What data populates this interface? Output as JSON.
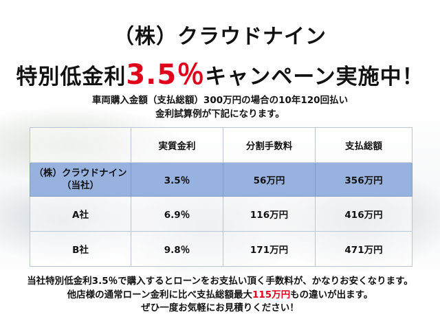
{
  "header": {
    "company": "（株）クラウドナイン",
    "headline_before": "特別低金利",
    "headline_rate": "3.5％",
    "headline_after": "キャンペーン実施中！"
  },
  "description": {
    "line1": "車両購入金額（支払総額）300万円の場合の10年120回払い",
    "line2": "金利試算例が下記になります。"
  },
  "table": {
    "columns": [
      "",
      "実質金利",
      "分割手数料",
      "支払総額"
    ],
    "rows": [
      {
        "name_line1": "（株）クラウドナイン",
        "name_line2": "（当社）",
        "rate": "3.5％",
        "fee": "56万円",
        "total": "356万円"
      },
      {
        "name_line1": "A社",
        "name_line2": "",
        "rate": "6.9％",
        "fee": "116万円",
        "total": "416万円"
      },
      {
        "name_line1": "B社",
        "name_line2": "",
        "rate": "9.8％",
        "fee": "171万円",
        "total": "471万円"
      }
    ],
    "highlight_color": "#98b2e0"
  },
  "note": {
    "line1": "当社特別低金利3.5％で購入するとローンをお支払い頂く手数料が、かなりお安くなります。",
    "line2_before": "他店様の通常ローン金利に比べ支払総額最大",
    "line2_highlight": "115万円",
    "line2_after": "もの違いが出ます。",
    "line3": "ぜひ一度お気軽にお見積りください！"
  },
  "colors": {
    "accent_red": "#e0001b",
    "text": "#111111"
  }
}
